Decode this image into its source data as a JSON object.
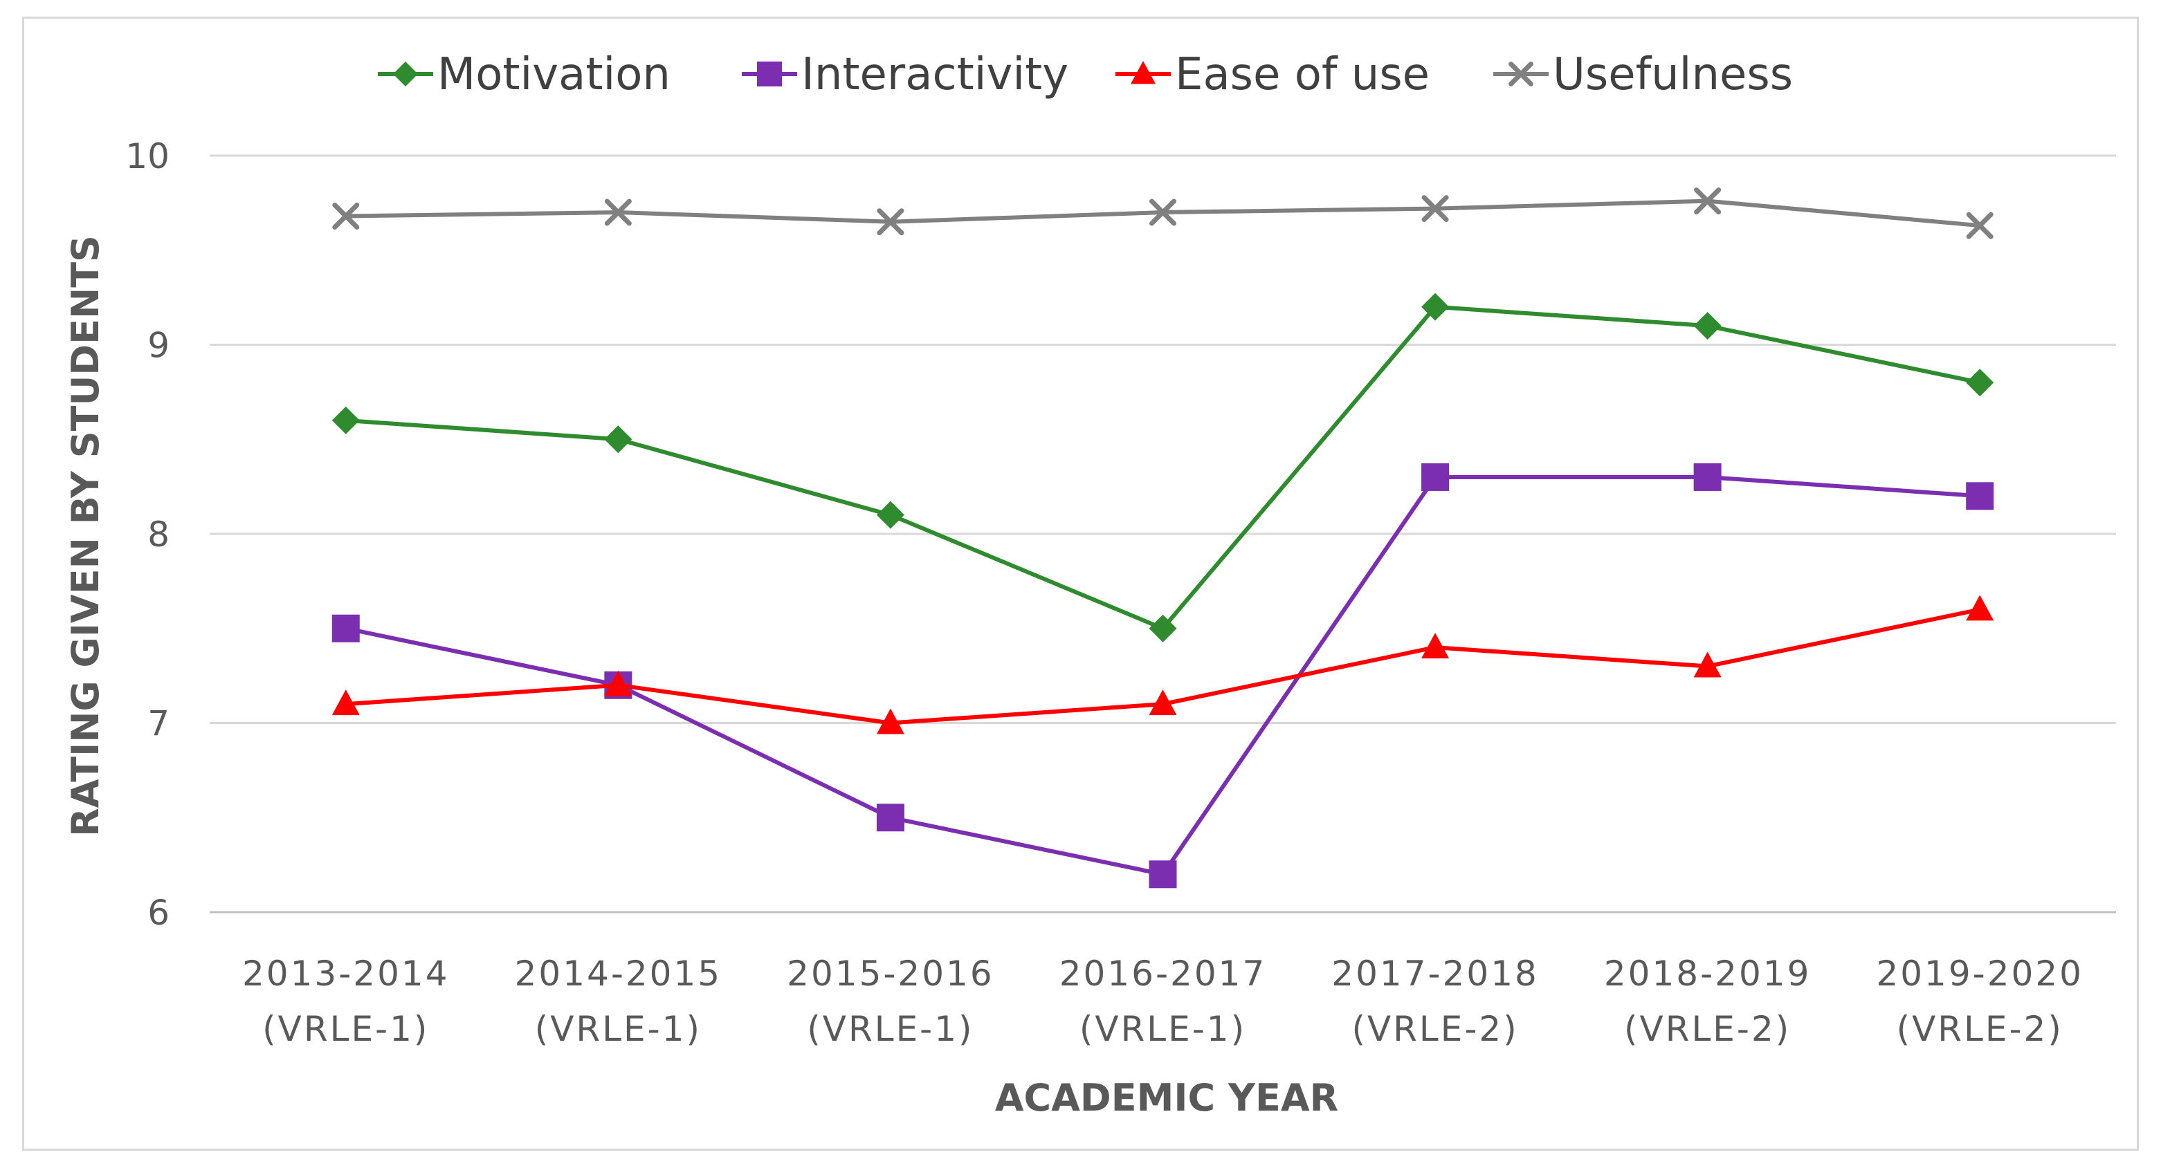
{
  "chart_data": {
    "type": "line",
    "title": "",
    "xlabel": "ACADEMIC YEAR",
    "ylabel": "RATING GIVEN BY STUDENTS",
    "ylim": [
      6,
      10
    ],
    "yticks": [
      "6",
      "7",
      "8",
      "9",
      "10"
    ],
    "grid": true,
    "legend_position": "top",
    "categories": [
      [
        "2013-2014",
        "(VRLE-1)"
      ],
      [
        "2014-2015",
        "(VRLE-1)"
      ],
      [
        "2015-2016",
        "(VRLE-1)"
      ],
      [
        "2016-2017",
        "(VRLE-1)"
      ],
      [
        "2017-2018",
        "(VRLE-2)"
      ],
      [
        "2018-2019",
        "(VRLE-2)"
      ],
      [
        "2019-2020",
        "(VRLE-2)"
      ]
    ],
    "series": [
      {
        "name": "Motivation",
        "marker": "diamond",
        "color": "#2e8b2e",
        "values": [
          8.6,
          8.5,
          8.1,
          7.5,
          9.2,
          9.1,
          8.8
        ]
      },
      {
        "name": "Interactivity",
        "marker": "square",
        "color": "#7b2fb0",
        "values": [
          7.5,
          7.2,
          6.5,
          6.2,
          8.3,
          8.3,
          8.2
        ]
      },
      {
        "name": "Ease of use",
        "marker": "triangle",
        "color": "#ff0000",
        "values": [
          7.1,
          7.2,
          7.0,
          7.1,
          7.4,
          7.3,
          7.6
        ]
      },
      {
        "name": "Usefulness",
        "marker": "cross",
        "color": "#808080",
        "values": [
          9.68,
          9.7,
          9.65,
          9.7,
          9.72,
          9.76,
          9.63
        ]
      }
    ]
  }
}
